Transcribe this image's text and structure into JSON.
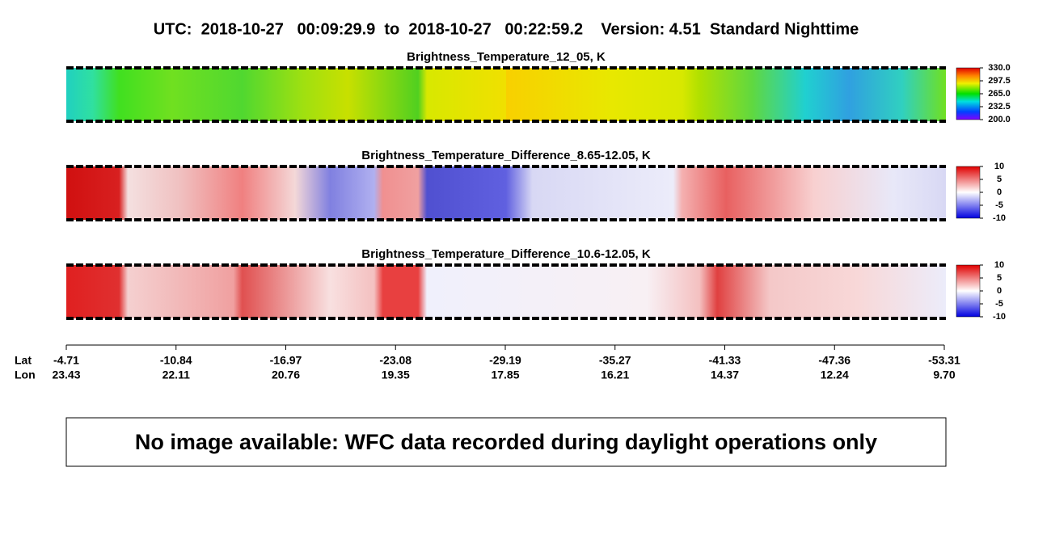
{
  "header": {
    "title": "UTC:  2018-10-27   00:09:29.9  to  2018-10-27   00:22:59.2    Version: 4.51  Standard Nighttime"
  },
  "panels": [
    {
      "title": "Brightness_Temperature_12_05, K",
      "colorbar_ticks": [
        {
          "value": 330,
          "label": "330.0"
        },
        {
          "value": 297.5,
          "label": "297.5"
        },
        {
          "value": 265,
          "label": "265.0"
        },
        {
          "value": 232.5,
          "label": "232.5"
        },
        {
          "value": 200,
          "label": "200.0"
        }
      ]
    },
    {
      "title": "Brightness_Temperature_Difference_8.65-12.05, K",
      "colorbar_ticks": [
        10,
        5,
        0,
        -5,
        -10
      ]
    },
    {
      "title": "Brightness_Temperature_Difference_10.6-12.05, K",
      "colorbar_ticks": [
        10,
        5,
        0,
        -5,
        -10
      ]
    }
  ],
  "axis": {
    "lat_label": "Lat",
    "lon_label": "Lon",
    "lat_ticks": [
      -4.71,
      -10.84,
      -16.97,
      -23.08,
      -29.19,
      -35.27,
      -41.33,
      -47.36,
      -53.31
    ],
    "lon_ticks": [
      23.43,
      22.11,
      20.76,
      19.35,
      17.85,
      16.21,
      14.37,
      12.24,
      {
        "value": 9.7,
        "label": "9.70"
      }
    ]
  },
  "message": "No image available: WFC data recorded during daylight operations only"
}
